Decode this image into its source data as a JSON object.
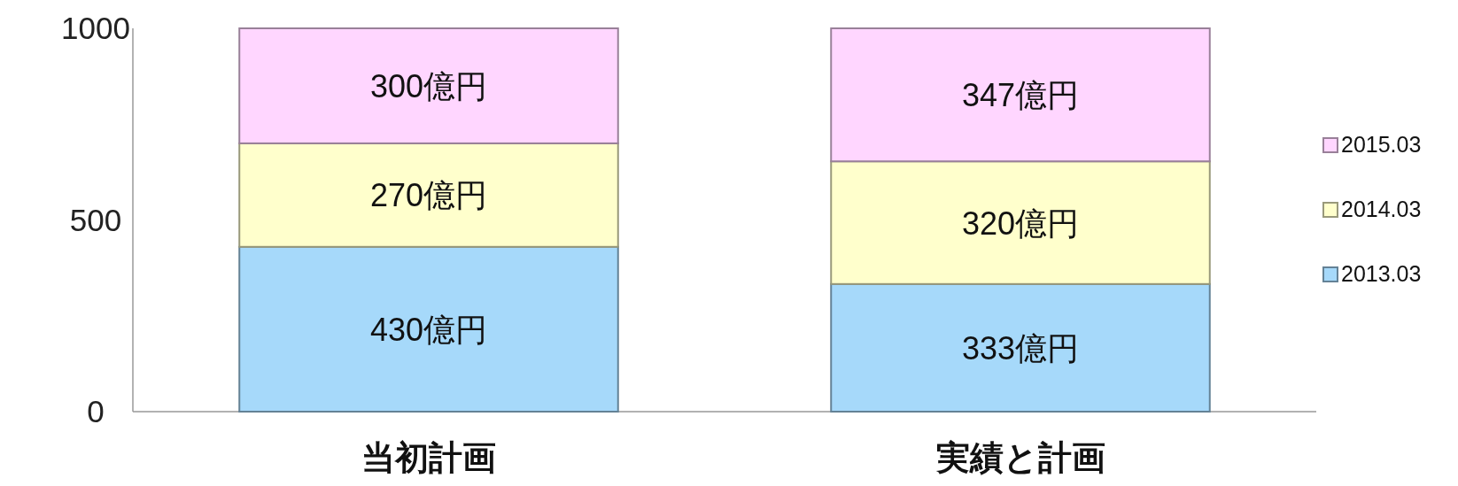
{
  "chart_data": {
    "type": "bar",
    "stacked": true,
    "categories": [
      "当初計画",
      "実績と計画"
    ],
    "series": [
      {
        "name": "2013.03",
        "color": "#a6d9fa",
        "values": [
          430,
          333
        ],
        "value_labels": [
          "430億円",
          "333億円"
        ]
      },
      {
        "name": "2014.03",
        "color": "#ffffcc",
        "values": [
          270,
          320
        ],
        "value_labels": [
          "270億円",
          "320億円"
        ]
      },
      {
        "name": "2015.03",
        "color": "#ffd6ff",
        "values": [
          300,
          347
        ],
        "value_labels": [
          "300億円",
          "347億円"
        ]
      }
    ],
    "ylim": [
      0,
      1000
    ],
    "yticks": [
      0,
      500,
      1000
    ],
    "grid": false,
    "legend": "right"
  }
}
